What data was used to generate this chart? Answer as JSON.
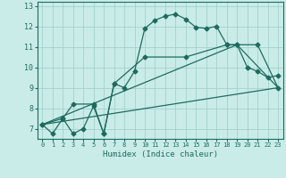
{
  "title": "",
  "xlabel": "Humidex (Indice chaleur)",
  "bg_color": "#c9ece9",
  "grid_color": "#9dccc9",
  "line_color": "#1e6b5e",
  "xlim": [
    -0.5,
    23.5
  ],
  "ylim": [
    6.5,
    13.2
  ],
  "xticks": [
    0,
    1,
    2,
    3,
    4,
    5,
    6,
    7,
    8,
    9,
    10,
    11,
    12,
    13,
    14,
    15,
    16,
    17,
    18,
    19,
    20,
    21,
    22,
    23
  ],
  "yticks": [
    7,
    8,
    9,
    10,
    11,
    12,
    13
  ],
  "line1_x": [
    0,
    1,
    2,
    3,
    4,
    5,
    6,
    7,
    8,
    9,
    10,
    11,
    12,
    13,
    14,
    15,
    16,
    17,
    18,
    19,
    20,
    21,
    22,
    23
  ],
  "line1_y": [
    7.2,
    6.75,
    7.5,
    6.75,
    7.0,
    8.1,
    6.75,
    9.2,
    9.0,
    9.8,
    11.9,
    12.3,
    12.5,
    12.6,
    12.35,
    11.95,
    11.9,
    12.0,
    11.1,
    11.1,
    10.0,
    9.8,
    9.5,
    9.6
  ],
  "line2_x": [
    0,
    2,
    3,
    5,
    6,
    7,
    10,
    14,
    18,
    19,
    21,
    23
  ],
  "line2_y": [
    7.2,
    7.5,
    8.2,
    8.2,
    6.75,
    9.2,
    10.5,
    10.5,
    11.1,
    11.1,
    11.1,
    9.0
  ],
  "line3_x": [
    0,
    23
  ],
  "line3_y": [
    7.2,
    9.0
  ],
  "line4_x": [
    0,
    19,
    23
  ],
  "line4_y": [
    7.2,
    11.1,
    9.0
  ],
  "markersize": 2.5,
  "linewidth": 0.9
}
